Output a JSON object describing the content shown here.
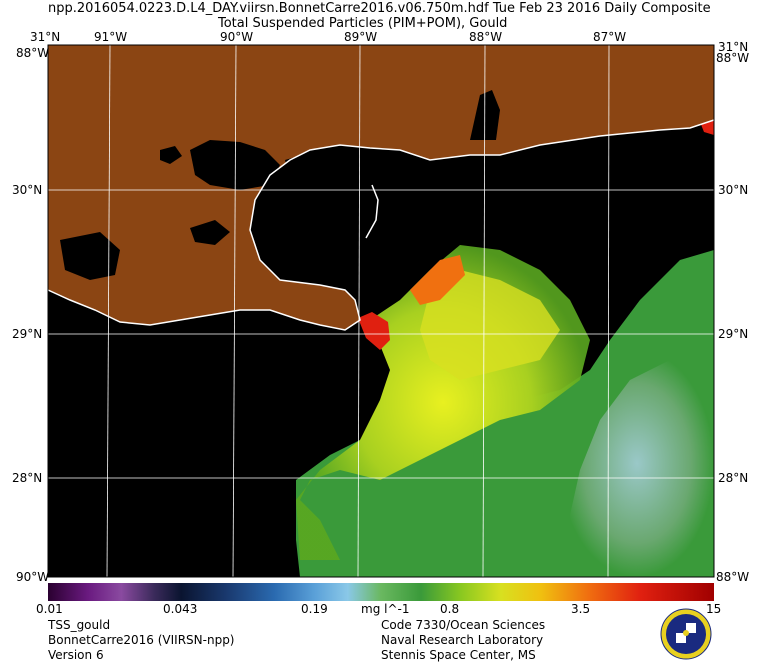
{
  "header": {
    "title_line1": "npp.2016054.0223.D.L4_DAY.viirsn.BonnetCarre2016.v06.750m.hdf     Tue Feb 23 2016 Daily Composite",
    "title_line2": "Total Suspended Particles (PIM+POM), Gould"
  },
  "map": {
    "lon_labels": [
      "91°W",
      "90°W",
      "89°W",
      "88°W",
      "87°W"
    ],
    "top_left_label": "31°N",
    "top_right_label": "31°N",
    "corner_top_left_w": "88°W",
    "corner_top_right_w": "88°W",
    "lat_labels_left": [
      "30°N",
      "29°N",
      "28°N"
    ],
    "lat_labels_right": [
      "30°N",
      "29°N",
      "28°N"
    ],
    "corner_bottom_left": "90°W",
    "corner_bottom_right": "88°W",
    "colors": {
      "land": "#8b4513",
      "water": "#000000",
      "coast": "#ffffff",
      "grid": "#ffffff"
    }
  },
  "colorbar": {
    "ticks": [
      "0.01",
      "0.043",
      "0.19",
      "0.8",
      "3.5",
      "15"
    ],
    "unit": "mg l^-1"
  },
  "footer": {
    "left": [
      "TSS_gould",
      "BonnetCarre2016 (VIIRSN-npp)",
      "Version 6"
    ],
    "right": [
      "Code 7330/Ocean Sciences",
      "Naval Research Laboratory",
      "Stennis Space Center, MS"
    ]
  }
}
